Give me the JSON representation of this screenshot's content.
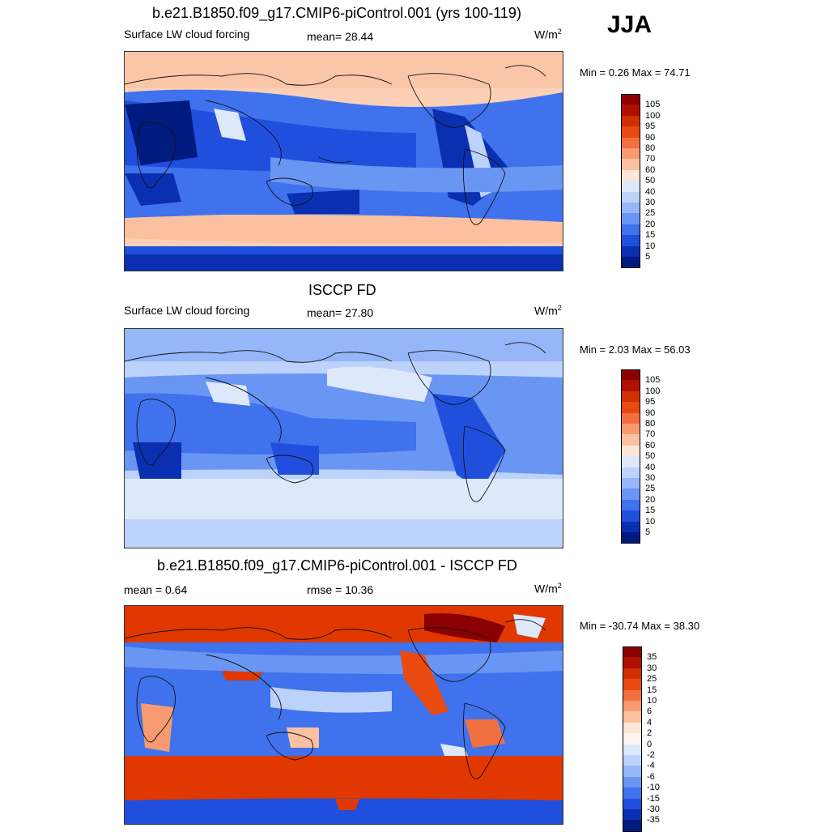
{
  "season": "JJA",
  "panels": [
    {
      "title": "b.e21.B1850.f09_g17.CMIP6-piControl.001 (yrs 100-119)",
      "left_label": "Surface LW cloud forcing",
      "mid_label": "mean=  28.44",
      "units": "W/m",
      "units_sup": "2",
      "minmax": "Min =   0.26 Max =  74.71"
    },
    {
      "title": "ISCCP FD",
      "left_label": "Surface LW cloud forcing",
      "mid_label": "mean=  27.80",
      "units": "W/m",
      "units_sup": "2",
      "minmax": "Min =   2.03 Max =  56.03"
    },
    {
      "title": "b.e21.B1850.f09_g17.CMIP6-piControl.001 - ISCCP FD",
      "left_label": "mean =   0.64",
      "mid_label": "rmse =  10.36",
      "units": "W/m",
      "units_sup": "2",
      "minmax": "Min = -30.74 Max =  38.30"
    }
  ],
  "colorbars": {
    "absolute": {
      "labels": [
        "105",
        "100",
        "95",
        "90",
        "80",
        "70",
        "60",
        "50",
        "40",
        "30",
        "25",
        "20",
        "15",
        "10",
        "5"
      ],
      "colors": [
        "#8b0000",
        "#b01000",
        "#d03000",
        "#e84a10",
        "#f27040",
        "#f79a70",
        "#fbc0a0",
        "#fde6d6",
        "#dde9fb",
        "#bcd2fa",
        "#95b6f8",
        "#6a96f3",
        "#3f72ec",
        "#1f4fdc",
        "#0a2fb0",
        "#001b80"
      ]
    },
    "difference": {
      "labels": [
        "35",
        "30",
        "25",
        "15",
        "10",
        "6",
        "4",
        "2",
        "0",
        "-2",
        "-4",
        "-6",
        "-10",
        "-15",
        "-30",
        "-35"
      ],
      "colors": [
        "#8b0000",
        "#b01000",
        "#d03000",
        "#e84a10",
        "#f27040",
        "#f79a70",
        "#fbc0a0",
        "#fde6d6",
        "#fff5ee",
        "#dde9fb",
        "#bcd2fa",
        "#95b6f8",
        "#6a96f3",
        "#3f72ec",
        "#1f4fdc",
        "#0a2fb0",
        "#001b80"
      ]
    }
  }
}
